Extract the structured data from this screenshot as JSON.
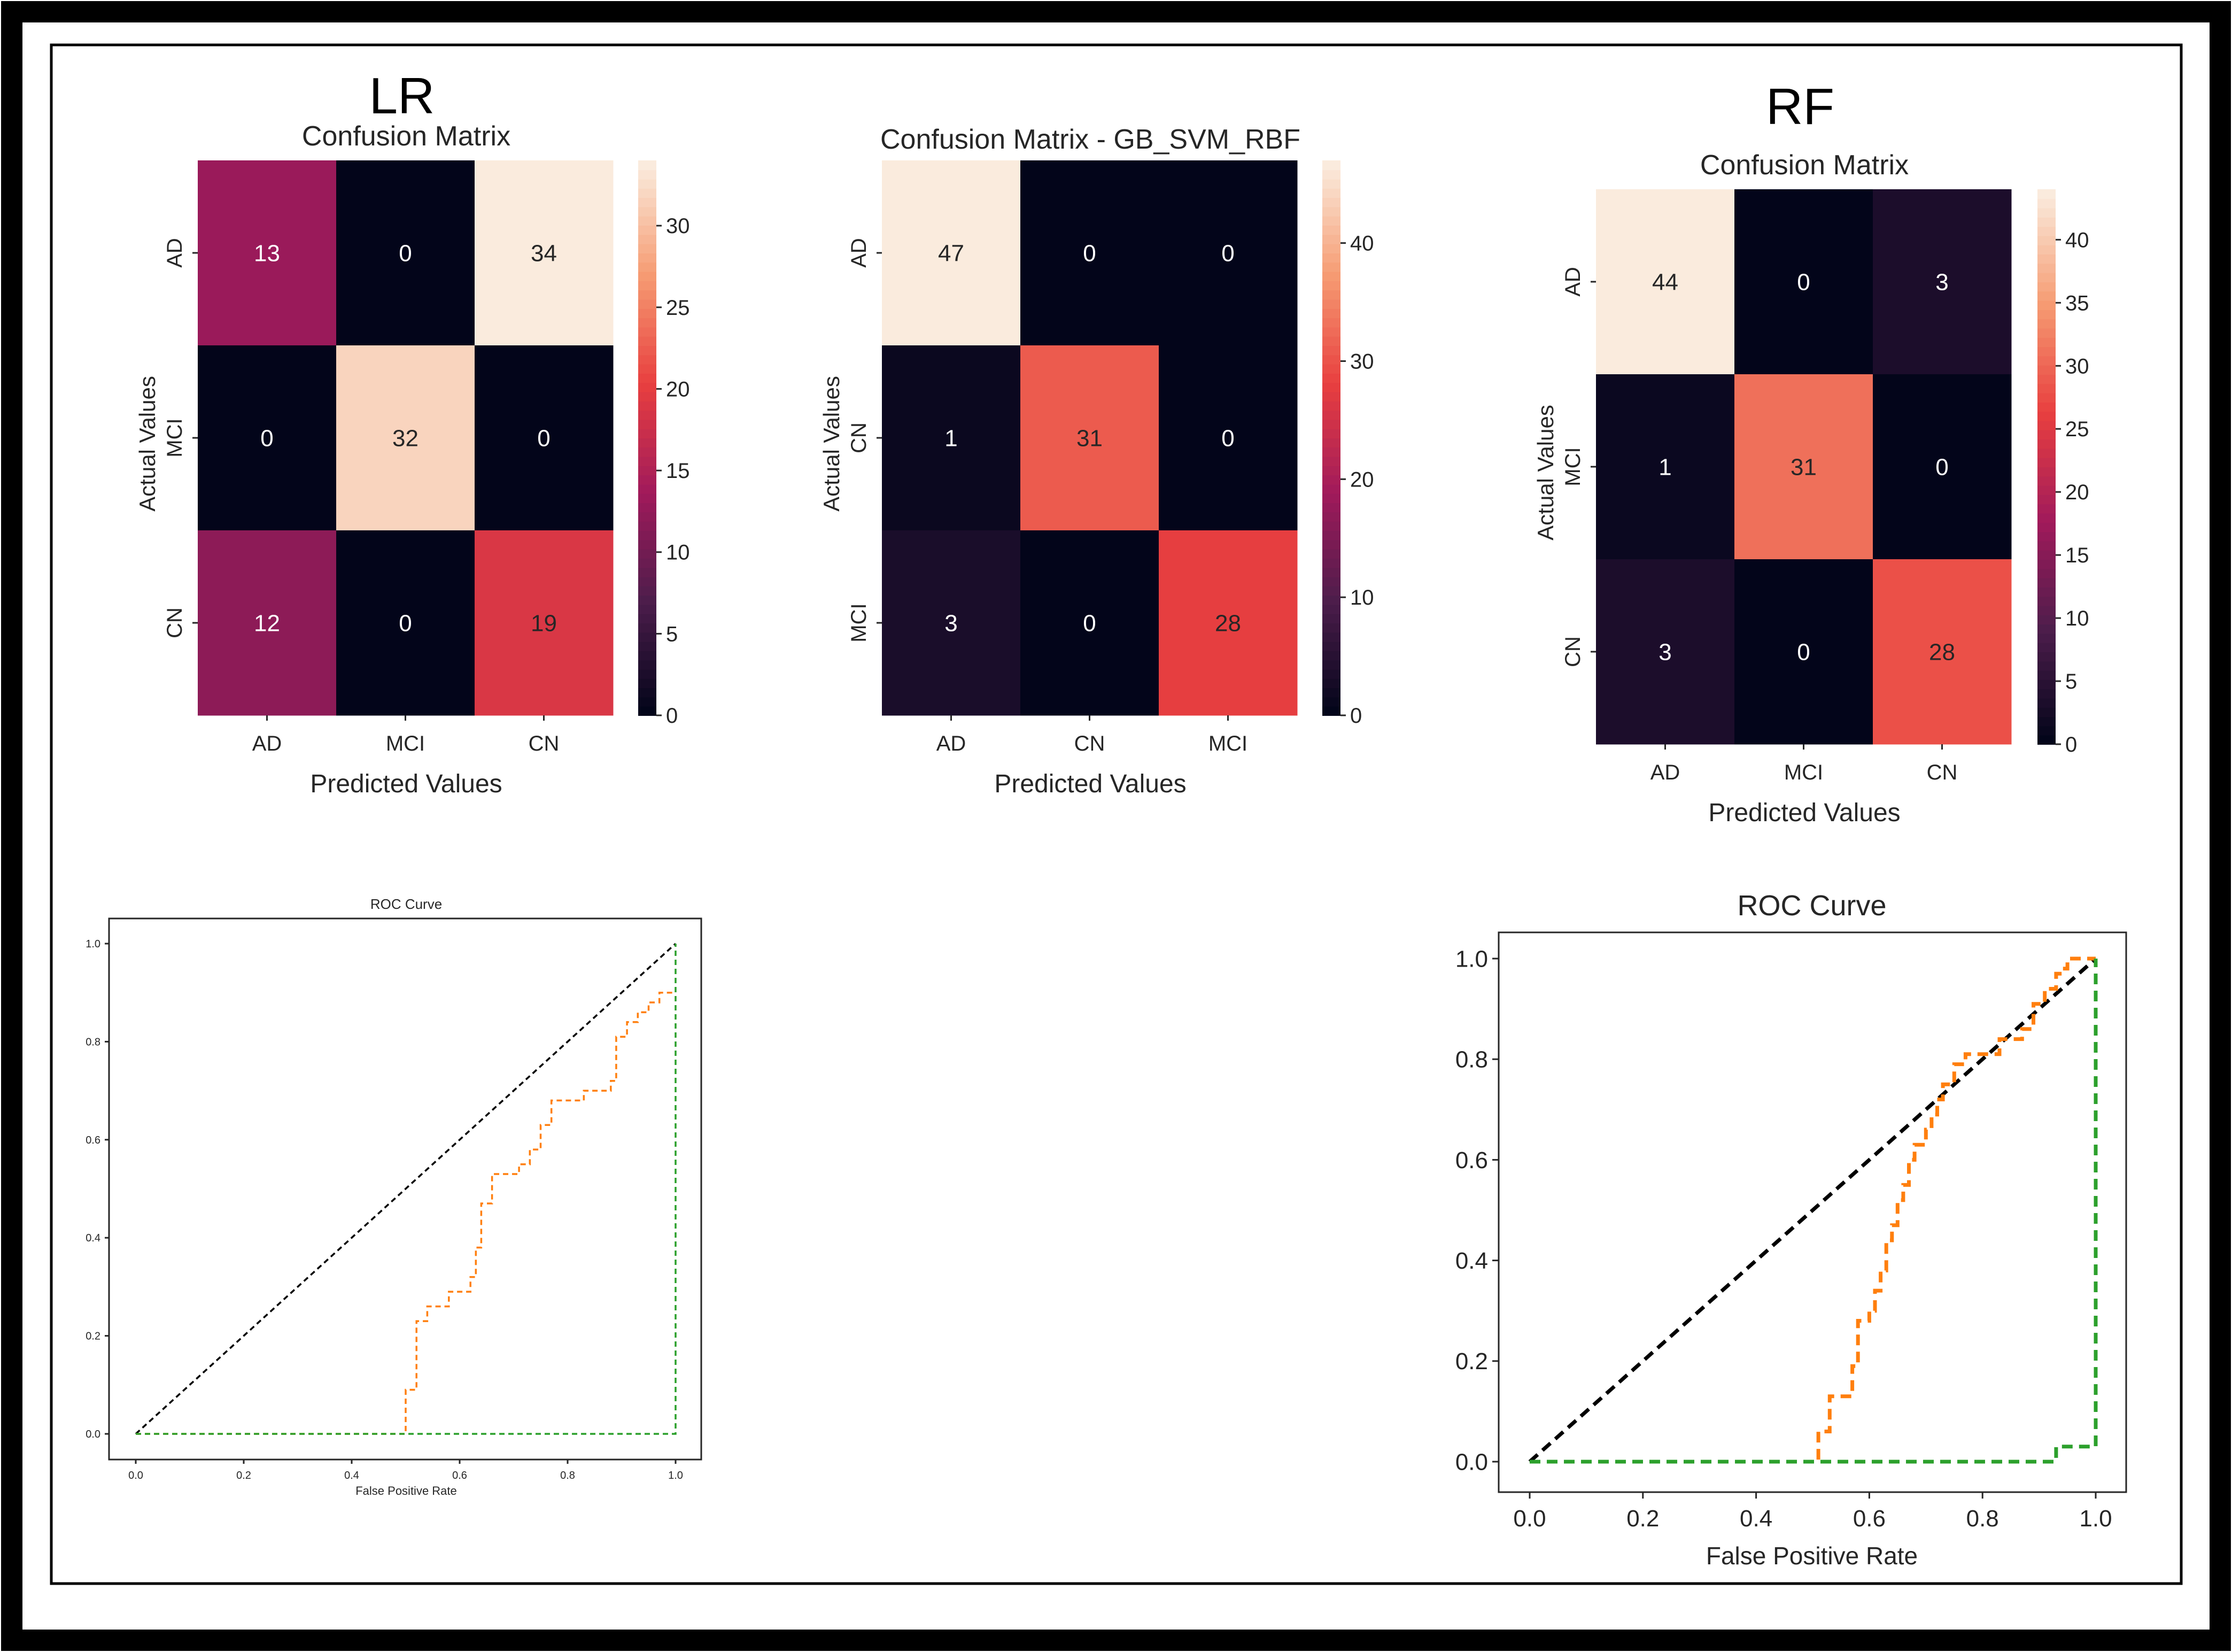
{
  "colors": {
    "roc_diagonal": "#000000",
    "roc_orange": "#ff7f0e",
    "roc_green": "#2ca02c",
    "cmap": [
      "#03051a",
      "#4c1d4b",
      "#a11a5b",
      "#e83f3f",
      "#f69c73",
      "#faebdd"
    ]
  },
  "chart_data": [
    {
      "type": "heatmap",
      "model_label": "LR",
      "title": "Confusion Matrix",
      "xlabel": "Predicted Values",
      "ylabel": "Actual Values",
      "x_categories": [
        "AD",
        "MCI",
        "CN"
      ],
      "y_categories": [
        "AD",
        "MCI",
        "CN"
      ],
      "values": [
        [
          13,
          0,
          34
        ],
        [
          0,
          32,
          0
        ],
        [
          12,
          0,
          19
        ]
      ],
      "value_labels": [
        [
          "13",
          "0",
          "34"
        ],
        [
          "0",
          "32",
          "0"
        ],
        [
          "12",
          "0",
          "19"
        ]
      ],
      "colorbar_range": [
        0,
        34
      ],
      "colorbar_ticks": [
        0,
        5,
        10,
        15,
        20,
        25,
        30
      ],
      "colorbar_tick_labels": [
        "0",
        "5",
        "10",
        "15",
        "20",
        "25",
        "30"
      ]
    },
    {
      "type": "heatmap",
      "model_label": "",
      "title": "Confusion Matrix - GB_SVM_RBF",
      "xlabel": "Predicted Values",
      "ylabel": "Actual Values",
      "x_categories": [
        "AD",
        "CN",
        "MCI"
      ],
      "y_categories": [
        "AD",
        "CN",
        "MCI"
      ],
      "values": [
        [
          47,
          0,
          0
        ],
        [
          1,
          31,
          0
        ],
        [
          3,
          0,
          28
        ]
      ],
      "value_labels": [
        [
          "47",
          "0",
          "0"
        ],
        [
          "1",
          "31",
          "0"
        ],
        [
          "3",
          "0",
          "28"
        ]
      ],
      "colorbar_range": [
        0,
        47
      ],
      "colorbar_ticks": [
        0,
        10,
        20,
        30,
        40
      ],
      "colorbar_tick_labels": [
        "0",
        "10",
        "20",
        "30",
        "40"
      ]
    },
    {
      "type": "heatmap",
      "model_label": "RF",
      "title": "Confusion Matrix",
      "xlabel": "Predicted Values",
      "ylabel": "Actual Values",
      "x_categories": [
        "AD",
        "MCI",
        "CN"
      ],
      "y_categories": [
        "AD",
        "MCI",
        "CN"
      ],
      "values": [
        [
          44,
          0,
          3
        ],
        [
          1,
          31,
          0
        ],
        [
          3,
          0,
          28
        ]
      ],
      "value_labels": [
        [
          "44",
          "0",
          "3"
        ],
        [
          "1",
          "31",
          "0"
        ],
        [
          "3",
          "0",
          "28"
        ]
      ],
      "colorbar_range": [
        0,
        44
      ],
      "colorbar_ticks": [
        0,
        5,
        10,
        15,
        20,
        25,
        30,
        35,
        40
      ],
      "colorbar_tick_labels": [
        "0",
        "5",
        "10",
        "15",
        "20",
        "25",
        "30",
        "35",
        "40"
      ]
    },
    {
      "type": "line",
      "title": "ROC Curve",
      "xlabel": "False Positive Rate",
      "ylabel": "",
      "xlim": [
        0,
        1
      ],
      "ylim": [
        0,
        1
      ],
      "x_ticks": [
        0,
        0.2,
        0.4,
        0.6,
        0.8,
        1.0
      ],
      "x_tick_labels": [
        "0.0",
        "0.2",
        "0.4",
        "0.6",
        "0.8",
        "1.0"
      ],
      "y_ticks": [
        0,
        0.2,
        0.4,
        0.6,
        0.8,
        1.0
      ],
      "y_tick_labels": [
        "0.0",
        "0.2",
        "0.4",
        "0.6",
        "0.8",
        "1.0"
      ],
      "series": [
        {
          "name": "chance",
          "style": "dashed",
          "color": "#000000",
          "x": [
            0,
            1
          ],
          "y": [
            0,
            1
          ]
        },
        {
          "name": "class-curve-orange",
          "style": "dashed-step",
          "color": "#ff7f0e",
          "x": [
            0,
            0.5,
            0.5,
            0.52,
            0.52,
            0.54,
            0.54,
            0.58,
            0.58,
            0.62,
            0.62,
            0.63,
            0.63,
            0.64,
            0.64,
            0.66,
            0.66,
            0.71,
            0.71,
            0.73,
            0.73,
            0.75,
            0.75,
            0.77,
            0.77,
            0.83,
            0.83,
            0.88,
            0.88,
            0.89,
            0.89,
            0.91,
            0.91,
            0.93,
            0.93,
            0.95,
            0.95,
            0.97,
            0.97,
            1.0
          ],
          "y": [
            0,
            0,
            0.09,
            0.09,
            0.23,
            0.23,
            0.26,
            0.26,
            0.29,
            0.29,
            0.32,
            0.32,
            0.38,
            0.38,
            0.47,
            0.47,
            0.53,
            0.53,
            0.55,
            0.55,
            0.58,
            0.58,
            0.63,
            0.63,
            0.68,
            0.68,
            0.7,
            0.7,
            0.72,
            0.72,
            0.81,
            0.81,
            0.84,
            0.84,
            0.86,
            0.86,
            0.88,
            0.88,
            0.9,
            0.9
          ]
        },
        {
          "name": "class-curve-green",
          "style": "dashed-step",
          "color": "#2ca02c",
          "x": [
            0,
            1.0,
            1.0
          ],
          "y": [
            0,
            0,
            1.0
          ]
        }
      ]
    },
    {
      "type": "line",
      "title": "ROC Curve",
      "xlabel": "False Positive Rate",
      "ylabel": "",
      "xlim": [
        0,
        1
      ],
      "ylim": [
        0,
        1
      ],
      "x_ticks": [
        0,
        0.2,
        0.4,
        0.6,
        0.8,
        1.0
      ],
      "x_tick_labels": [
        "0.0",
        "0.2",
        "0.4",
        "0.6",
        "0.8",
        "1.0"
      ],
      "y_ticks": [
        0,
        0.2,
        0.4,
        0.6,
        0.8,
        1.0
      ],
      "y_tick_labels": [
        "0.0",
        "0.2",
        "0.4",
        "0.6",
        "0.8",
        "1.0"
      ],
      "series": [
        {
          "name": "chance",
          "style": "dashed",
          "color": "#000000",
          "x": [
            0,
            1
          ],
          "y": [
            0,
            1
          ]
        },
        {
          "name": "class-curve-orange",
          "style": "dashed-step",
          "color": "#ff7f0e",
          "x": [
            0,
            0.51,
            0.51,
            0.53,
            0.53,
            0.57,
            0.57,
            0.58,
            0.58,
            0.6,
            0.6,
            0.61,
            0.61,
            0.62,
            0.62,
            0.63,
            0.63,
            0.64,
            0.64,
            0.65,
            0.65,
            0.66,
            0.66,
            0.67,
            0.67,
            0.68,
            0.68,
            0.7,
            0.7,
            0.71,
            0.71,
            0.72,
            0.72,
            0.73,
            0.73,
            0.75,
            0.75,
            0.77,
            0.77,
            0.83,
            0.83,
            0.87,
            0.87,
            0.89,
            0.89,
            0.91,
            0.91,
            0.93,
            0.93,
            0.94,
            0.94,
            0.95,
            0.95,
            0.97,
            0.97,
            1.0
          ],
          "y": [
            0,
            0,
            0.06,
            0.06,
            0.13,
            0.13,
            0.19,
            0.19,
            0.28,
            0.28,
            0.3,
            0.3,
            0.34,
            0.34,
            0.38,
            0.38,
            0.44,
            0.44,
            0.47,
            0.47,
            0.52,
            0.52,
            0.55,
            0.55,
            0.6,
            0.6,
            0.63,
            0.63,
            0.66,
            0.66,
            0.69,
            0.69,
            0.72,
            0.72,
            0.75,
            0.75,
            0.79,
            0.79,
            0.81,
            0.81,
            0.84,
            0.84,
            0.86,
            0.86,
            0.91,
            0.91,
            0.94,
            0.94,
            0.97,
            0.97,
            0.98,
            0.98,
            1.0,
            1.0,
            1.0,
            1.0
          ]
        },
        {
          "name": "class-curve-green",
          "style": "dashed-step",
          "color": "#2ca02c",
          "x": [
            0,
            0.93,
            0.93,
            1.0,
            1.0
          ],
          "y": [
            0,
            0,
            0.03,
            0.03,
            1.0
          ]
        }
      ]
    }
  ]
}
